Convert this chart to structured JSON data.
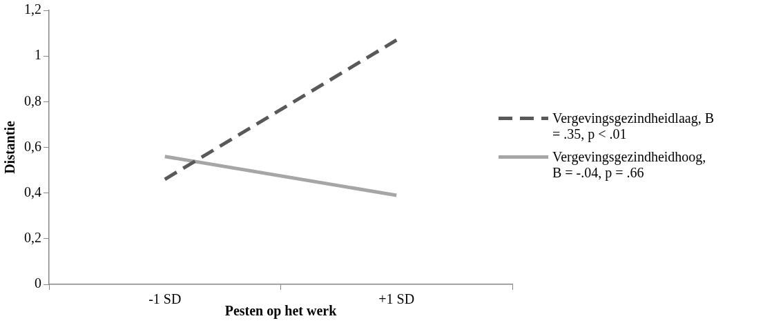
{
  "chart_data": {
    "type": "line",
    "xlabel": "Pesten op het werk",
    "ylabel": "Distantie",
    "categories": [
      "-1 SD",
      "+1 SD"
    ],
    "series": [
      {
        "name": "Vergevingsgezindheidlaag, B = .35, p < .01",
        "color": "#595959",
        "line_style": "dashed",
        "values": [
          0.46,
          1.07
        ]
      },
      {
        "name": "Vergevingsgezindheidhoog, B = -.04, p = .66",
        "color": "#a6a6a6",
        "line_style": "solid",
        "values": [
          0.56,
          0.39
        ]
      }
    ],
    "ylim": [
      0,
      1.2
    ],
    "yticks": [
      0,
      {
        "value": 0.2,
        "label": "0,2"
      },
      {
        "value": 0.4,
        "label": "0,4"
      },
      {
        "value": 0.6,
        "label": "0,6"
      },
      {
        "value": 0.8,
        "label": "0,8"
      },
      1,
      {
        "value": 1.2,
        "label": "1,2"
      }
    ],
    "grid": false,
    "legend": "right",
    "marker": "none"
  }
}
